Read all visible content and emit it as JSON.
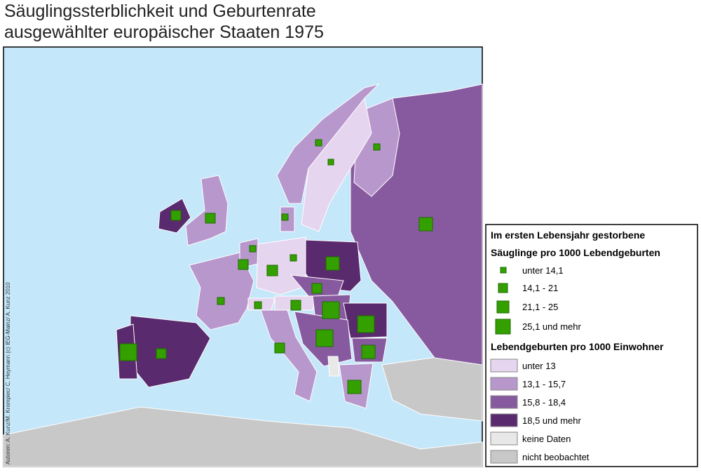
{
  "title": [
    "Säuglingssterblichkeit und Geburtenrate",
    "ausgewählter europäischer Staaten 1975"
  ],
  "legend": {
    "mortality": {
      "title": [
        "Im ersten Lebensjahr gestorbene",
        "Säuglinge pro 1000  Lebendgeburten"
      ],
      "items": [
        "unter  14,1",
        "14,1 - 21",
        "21,1 - 25",
        "25,1 und mehr"
      ]
    },
    "births": {
      "title": "Lebendgeburten pro 1000 Einwohner",
      "items": [
        "unter  13",
        "13,1 - 15,7",
        "15,8 - 18,4",
        "18,5 und mehr",
        "keine Daten",
        "nicht beobachtet"
      ]
    }
  },
  "credit": "Autoren: A. Kunz/M. Krompiec/ C. Heymann (c) IEG-Mainz/ A. Kunz 2010"
}
